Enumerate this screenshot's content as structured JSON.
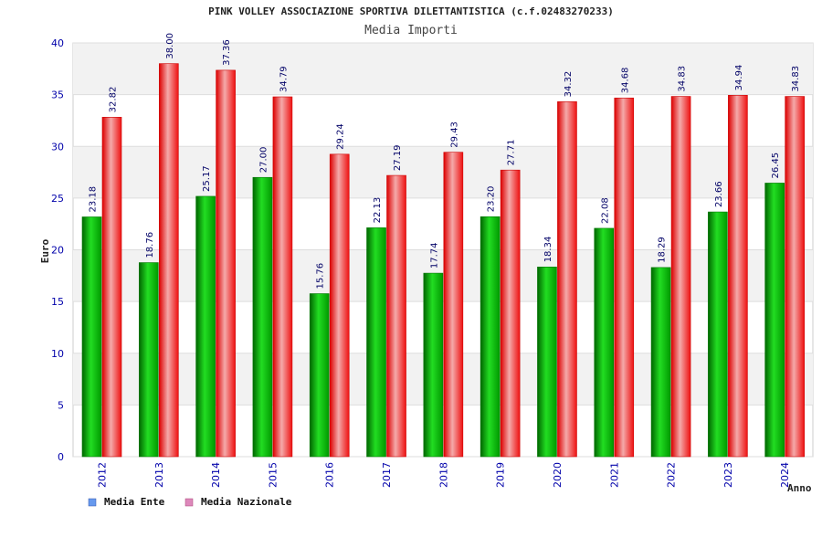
{
  "chart_data": {
    "type": "bar",
    "title": "PINK VOLLEY ASSOCIAZIONE SPORTIVA DILETTANTISTICA (c.f.02483270233)",
    "subtitle": "Media Importi",
    "xlabel": "Anno",
    "ylabel": "Euro",
    "ylim": [
      0,
      40
    ],
    "yticks": [
      0,
      5,
      10,
      15,
      20,
      25,
      30,
      35,
      40
    ],
    "grid": true,
    "legend_position": "bottom-left",
    "categories": [
      "2012",
      "2013",
      "2014",
      "2015",
      "2016",
      "2017",
      "2018",
      "2019",
      "2020",
      "2021",
      "2022",
      "2023",
      "2024"
    ],
    "series": [
      {
        "name": "Media Ente",
        "color": "#00bb00",
        "legend_color": "#6699ee",
        "values": [
          23.18,
          18.76,
          25.17,
          27.0,
          15.76,
          22.13,
          17.74,
          23.2,
          18.34,
          22.08,
          18.29,
          23.66,
          26.45
        ],
        "labels": [
          "23.18",
          "18.76",
          "25.17",
          "27.00",
          "15.76",
          "22.13",
          "17.74",
          "23.20",
          "18.34",
          "22.08",
          "18.29",
          "23.66",
          "26.45"
        ]
      },
      {
        "name": "Media Nazionale",
        "color": "#ee1111",
        "legend_color": "#dd88bb",
        "values": [
          32.82,
          38.0,
          37.36,
          34.79,
          29.24,
          27.19,
          29.43,
          27.71,
          34.32,
          34.68,
          34.83,
          34.94,
          34.83
        ],
        "labels": [
          "32.82",
          "38.00",
          "37.36",
          "34.79",
          "29.24",
          "27.19",
          "29.43",
          "27.71",
          "34.32",
          "34.68",
          "34.83",
          "34.94",
          "34.83"
        ]
      }
    ]
  }
}
